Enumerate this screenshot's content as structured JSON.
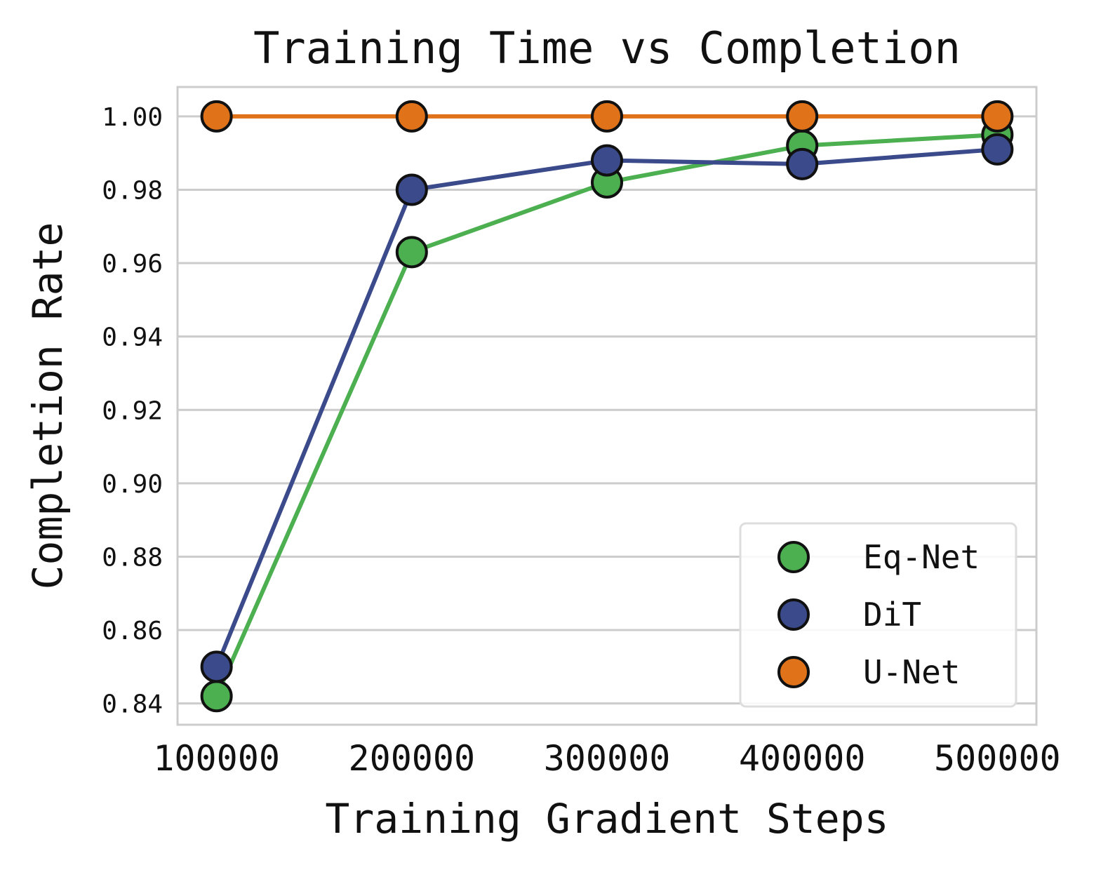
{
  "chart_data": {
    "type": "line",
    "title": "Training Time vs Completion",
    "xlabel": "Training Gradient Steps",
    "ylabel": "Completion Rate",
    "x": [
      100000,
      200000,
      300000,
      400000,
      500000
    ],
    "x_tick_labels": [
      "100000",
      "200000",
      "300000",
      "400000",
      "500000"
    ],
    "xlim": [
      80000,
      520000
    ],
    "ylim": [
      0.8342,
      1.008
    ],
    "y_ticks": [
      0.84,
      0.86,
      0.88,
      0.9,
      0.92,
      0.94,
      0.96,
      0.98,
      1.0
    ],
    "y_tick_labels": [
      "0.84",
      "0.86",
      "0.88",
      "0.90",
      "0.92",
      "0.94",
      "0.96",
      "0.98",
      "1.00"
    ],
    "grid": "y",
    "legend_position": "bottom-right",
    "series": [
      {
        "name": "Eq-Net",
        "color": "#4caf50",
        "values": [
          0.842,
          0.963,
          0.982,
          0.992,
          0.995
        ]
      },
      {
        "name": "DiT",
        "color": "#3b4a8a",
        "values": [
          0.85,
          0.98,
          0.988,
          0.987,
          0.991
        ]
      },
      {
        "name": "U-Net",
        "color": "#e0721a",
        "values": [
          1.0,
          1.0,
          1.0,
          1.0,
          1.0
        ]
      }
    ],
    "legend_order": [
      "Eq-Net",
      "DiT",
      "U-Net"
    ],
    "draw_order": [
      "Eq-Net",
      "DiT",
      "U-Net"
    ]
  }
}
